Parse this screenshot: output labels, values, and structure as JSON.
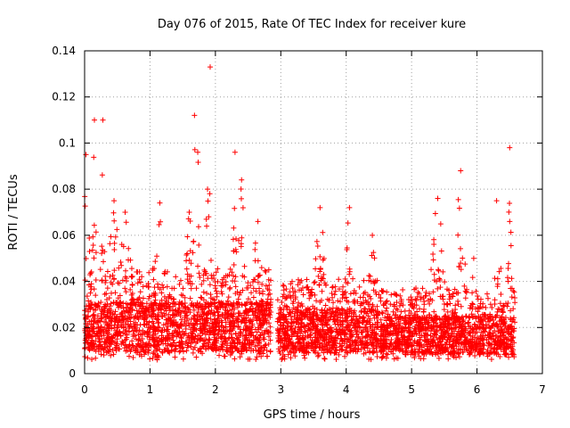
{
  "chart_data": {
    "type": "scatter",
    "title": "Day 076 of 2015, Rate Of TEC Index for receiver kure",
    "xlabel": "GPS time / hours",
    "ylabel": "ROTI / TECUs",
    "xlim": [
      0,
      7
    ],
    "ylim": [
      0,
      0.14
    ],
    "xticks": [
      "0",
      "1",
      "2",
      "3",
      "4",
      "5",
      "6",
      "7"
    ],
    "yticks": [
      "0",
      "0.02",
      "0.04",
      "0.06",
      "0.08",
      "0.1",
      "0.12",
      "0.14"
    ],
    "grid": true,
    "marker": "+",
    "color": "#ff0000",
    "series": [
      {
        "name": "ROTI",
        "segments": [
          {
            "start": 0.0,
            "end": 2.85,
            "base": 0.018
          },
          {
            "start": 2.95,
            "end": 4.5,
            "base": 0.016
          },
          {
            "start": 4.52,
            "end": 6.58,
            "base": 0.014
          }
        ],
        "peaks": [
          {
            "x": 0.02,
            "y": 0.095,
            "w": 0.08
          },
          {
            "x": 0.15,
            "y": 0.11,
            "w": 0.06
          },
          {
            "x": 0.28,
            "y": 0.11,
            "w": 0.05
          },
          {
            "x": 0.45,
            "y": 0.075,
            "w": 0.12
          },
          {
            "x": 0.62,
            "y": 0.07,
            "w": 0.15
          },
          {
            "x": 1.15,
            "y": 0.074,
            "w": 0.15
          },
          {
            "x": 1.6,
            "y": 0.07,
            "w": 0.12
          },
          {
            "x": 1.68,
            "y": 0.112,
            "w": 0.05
          },
          {
            "x": 1.73,
            "y": 0.096,
            "w": 0.06
          },
          {
            "x": 1.88,
            "y": 0.08,
            "w": 0.08
          },
          {
            "x": 1.92,
            "y": 0.133,
            "w": 0.01
          },
          {
            "x": 2.3,
            "y": 0.096,
            "w": 0.05
          },
          {
            "x": 2.4,
            "y": 0.084,
            "w": 0.07
          },
          {
            "x": 2.65,
            "y": 0.066,
            "w": 0.1
          },
          {
            "x": 3.6,
            "y": 0.072,
            "w": 0.12
          },
          {
            "x": 4.05,
            "y": 0.072,
            "w": 0.1
          },
          {
            "x": 4.4,
            "y": 0.06,
            "w": 0.1
          },
          {
            "x": 5.4,
            "y": 0.076,
            "w": 0.15
          },
          {
            "x": 5.75,
            "y": 0.088,
            "w": 0.1
          },
          {
            "x": 5.95,
            "y": 0.05,
            "w": 0.1
          },
          {
            "x": 6.3,
            "y": 0.075,
            "w": 0.1
          },
          {
            "x": 6.5,
            "y": 0.098,
            "w": 0.05
          }
        ]
      }
    ]
  }
}
